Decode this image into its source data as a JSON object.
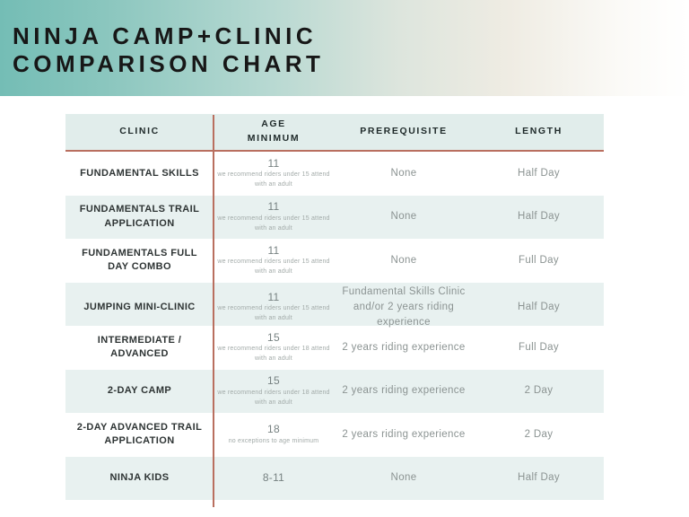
{
  "title": {
    "line1": "NINJA CAMP+CLINIC",
    "line2": "COMPARISON CHART"
  },
  "colors": {
    "banner_teal": "#74bdb5",
    "header_bg": "#e1edeb",
    "row_alt_bg": "#e8f1f0",
    "divider_red": "#b96f5f",
    "title_text": "#171717",
    "body_text": "#8b9392"
  },
  "table": {
    "headers": [
      "CLINIC",
      "AGE MINIMUM",
      "PREREQUISITE",
      "LENGTH"
    ],
    "rows": [
      {
        "clinic": "FUNDAMENTAL SKILLS",
        "age": "11",
        "age_note": "we recommend riders under 15 attend with an adult",
        "prerequisite": "None",
        "length": "Half Day"
      },
      {
        "clinic": "FUNDAMENTALS TRAIL APPLICATION",
        "age": "11",
        "age_note": "we recommend riders under 15 attend with an adult",
        "prerequisite": "None",
        "length": "Half Day"
      },
      {
        "clinic": "FUNDAMENTALS FULL DAY COMBO",
        "age": "11",
        "age_note": "we recommend riders under 15 attend with an adult",
        "prerequisite": "None",
        "length": "Full Day"
      },
      {
        "clinic": "JUMPING MINI-CLINIC",
        "age": "11",
        "age_note": "we recommend riders under 15 attend with an adult",
        "prerequisite": "Fundamental Skills Clinic and/or 2 years riding experience",
        "length": "Half Day"
      },
      {
        "clinic": "INTERMEDIATE / ADVANCED",
        "age": "15",
        "age_note": "we recommend riders under 18 attend with an adult",
        "prerequisite": "2 years riding experience",
        "length": "Full Day"
      },
      {
        "clinic": "2-DAY CAMP",
        "age": "15",
        "age_note": "we recommend riders under 18 attend with an adult",
        "prerequisite": "2 years riding experience",
        "length": "2 Day"
      },
      {
        "clinic": "2-DAY ADVANCED TRAIL APPLICATION",
        "age": "18",
        "age_note": "no exceptions to age minimum",
        "prerequisite": "2 years riding experience",
        "length": "2 Day"
      },
      {
        "clinic": "NINJA KIDS",
        "age": "8-11",
        "age_note": "",
        "prerequisite": "None",
        "length": "Half Day"
      }
    ]
  }
}
